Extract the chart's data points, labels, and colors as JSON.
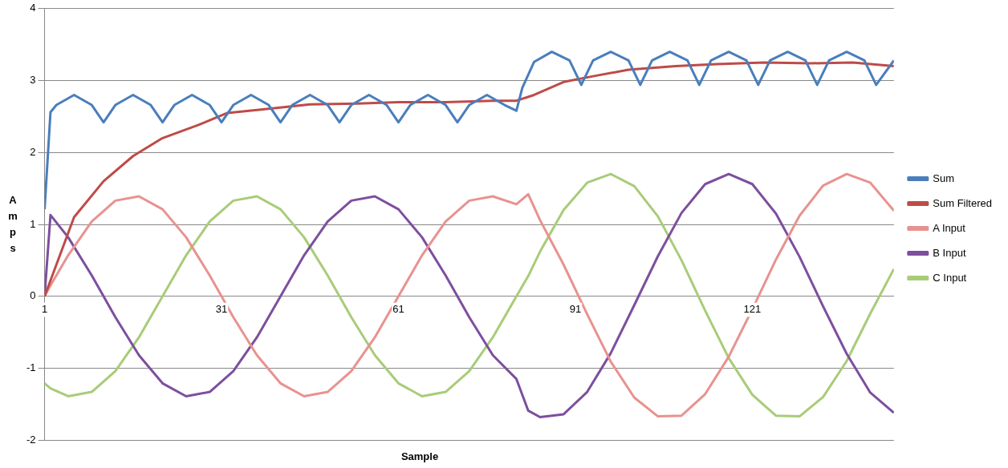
{
  "chart_data": {
    "type": "line",
    "xlabel": "Sample",
    "ylabel": "Amps",
    "xlim": [
      1,
      145
    ],
    "xticks": [
      1,
      31,
      61,
      91,
      121
    ],
    "ylim": [
      -2,
      4
    ],
    "yticks": [
      -2,
      -1,
      0,
      1,
      2,
      3,
      4
    ],
    "grid": "y",
    "legend": "right",
    "marker": "none",
    "line_style": "solid",
    "x": [
      1,
      2,
      5,
      9,
      13,
      17,
      21,
      25,
      29,
      33,
      37,
      41,
      45,
      49,
      53,
      57,
      61,
      65,
      69,
      73,
      77,
      81,
      83,
      85,
      89,
      93,
      97,
      101,
      105,
      109,
      113,
      117,
      121,
      125,
      129,
      133,
      137,
      141,
      145
    ],
    "series": [
      {
        "name": "Sum",
        "color": "#4a7ebb",
        "x": [
          1,
          2,
          3,
          6,
          9,
          11,
          13,
          16,
          19,
          21,
          23,
          26,
          29,
          31,
          33,
          36,
          39,
          41,
          43,
          46,
          49,
          51,
          53,
          56,
          59,
          61,
          63,
          66,
          69,
          71,
          73,
          76,
          79,
          81,
          82,
          84,
          87,
          90,
          92,
          94,
          97,
          100,
          102,
          104,
          107,
          110,
          112,
          114,
          117,
          120,
          122,
          124,
          127,
          130,
          132,
          134,
          137,
          140,
          142,
          145
        ],
        "values": [
          1.21,
          2.56,
          2.66,
          2.8,
          2.66,
          2.42,
          2.66,
          2.8,
          2.66,
          2.42,
          2.66,
          2.8,
          2.66,
          2.42,
          2.66,
          2.8,
          2.66,
          2.42,
          2.66,
          2.8,
          2.66,
          2.42,
          2.66,
          2.8,
          2.66,
          2.42,
          2.66,
          2.8,
          2.66,
          2.42,
          2.66,
          2.8,
          2.66,
          2.58,
          2.9,
          3.26,
          3.4,
          3.28,
          2.94,
          3.28,
          3.4,
          3.28,
          2.94,
          3.28,
          3.4,
          3.28,
          2.94,
          3.28,
          3.4,
          3.28,
          2.94,
          3.28,
          3.4,
          3.28,
          2.94,
          3.28,
          3.4,
          3.28,
          2.94,
          3.28
        ]
      },
      {
        "name": "Sum Filtered",
        "color": "#be4b48",
        "x": [
          1,
          6,
          11,
          16,
          21,
          27,
          32,
          38,
          46,
          54,
          61,
          69,
          77,
          81,
          84,
          89,
          94,
          100,
          108,
          115,
          123,
          131,
          138,
          145
        ],
        "values": [
          0,
          1.1,
          1.6,
          1.95,
          2.2,
          2.38,
          2.55,
          2.6,
          2.67,
          2.68,
          2.7,
          2.7,
          2.72,
          2.72,
          2.8,
          2.98,
          3.06,
          3.15,
          3.2,
          3.23,
          3.25,
          3.24,
          3.25,
          3.2
        ]
      },
      {
        "name": "A Input",
        "color": "#e8928f",
        "values": [
          0,
          0.15,
          0.57,
          1.04,
          1.33,
          1.39,
          1.21,
          0.82,
          0.29,
          -0.29,
          -0.82,
          -1.21,
          -1.39,
          -1.33,
          -1.04,
          -0.57,
          0,
          0.57,
          1.04,
          1.33,
          1.39,
          1.28,
          1.42,
          1.06,
          0.44,
          -0.25,
          -0.91,
          -1.41,
          -1.67,
          -1.66,
          -1.36,
          -0.84,
          -0.18,
          0.51,
          1.12,
          1.54,
          1.7,
          1.58,
          1.19
        ]
      },
      {
        "name": "B Input",
        "color": "#7d4f9e",
        "values": [
          0,
          1.13,
          0.82,
          0.29,
          -0.29,
          -0.82,
          -1.21,
          -1.39,
          -1.33,
          -1.04,
          -0.57,
          0,
          0.57,
          1.04,
          1.33,
          1.39,
          1.21,
          0.82,
          0.29,
          -0.29,
          -0.82,
          -1.15,
          -1.59,
          -1.68,
          -1.64,
          -1.33,
          -0.79,
          -0.12,
          0.56,
          1.16,
          1.56,
          1.7,
          1.56,
          1.15,
          0.55,
          -0.14,
          -0.8,
          -1.34,
          -1.62
        ]
      },
      {
        "name": "C Input",
        "color": "#a8cc78",
        "values": [
          -1.21,
          -1.28,
          -1.39,
          -1.33,
          -1.04,
          -0.57,
          0,
          0.57,
          1.04,
          1.33,
          1.39,
          1.21,
          0.82,
          0.29,
          -0.29,
          -0.82,
          -1.21,
          -1.39,
          -1.33,
          -1.04,
          -0.57,
          0,
          0.28,
          0.62,
          1.2,
          1.58,
          1.7,
          1.53,
          1.11,
          0.5,
          -0.2,
          -0.86,
          -1.37,
          -1.66,
          -1.67,
          -1.4,
          -0.9,
          -0.24,
          0.38
        ]
      }
    ]
  }
}
